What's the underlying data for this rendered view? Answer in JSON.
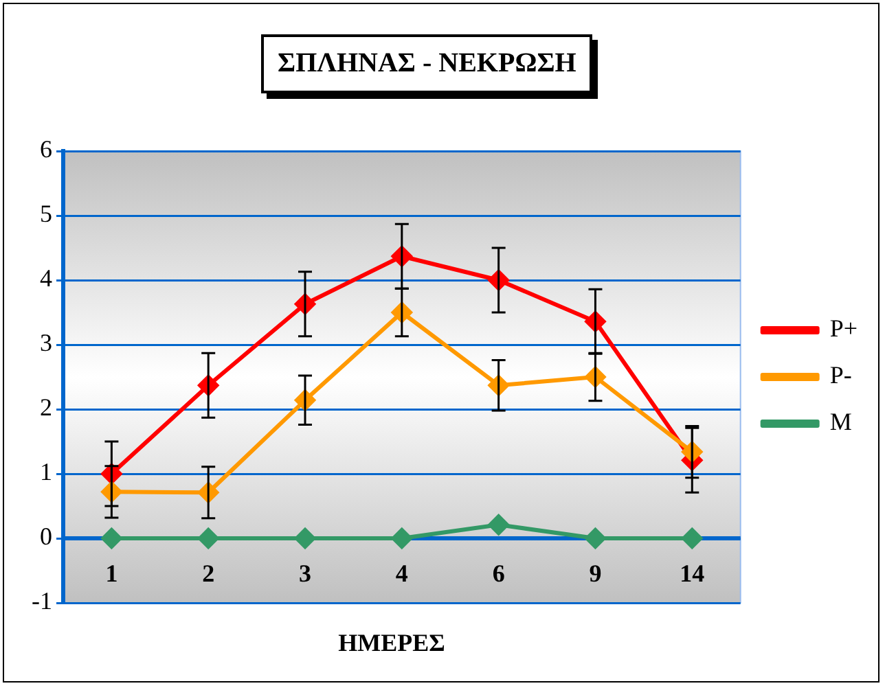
{
  "chart_data": {
    "type": "line",
    "title": "ΣΠΛΗΝΑΣ - ΝΕΚΡΩΣΗ",
    "xlabel": "ΗΜΕΡΕΣ",
    "categories": [
      "1",
      "2",
      "3",
      "4",
      "6",
      "9",
      "14"
    ],
    "series": [
      {
        "name": "P+",
        "color": "#ff0000",
        "values": [
          1.0,
          2.37,
          3.63,
          4.37,
          4.0,
          3.36,
          1.21
        ],
        "errors": [
          0.5,
          0.5,
          0.5,
          0.5,
          0.5,
          0.5,
          0.5
        ]
      },
      {
        "name": "P-",
        "color": "#ff9900",
        "values": [
          0.72,
          0.71,
          2.14,
          3.5,
          2.37,
          2.5,
          1.34
        ],
        "errors": [
          0.4,
          0.4,
          0.38,
          0.37,
          0.39,
          0.37,
          0.4
        ]
      },
      {
        "name": "M",
        "color": "#339966",
        "values": [
          0,
          0,
          0,
          0,
          0.21,
          0,
          0
        ]
      }
    ],
    "ref_lines": [
      {
        "axis": "y",
        "value": 0,
        "color": "#0066cc"
      }
    ],
    "ylim": [
      -1,
      6
    ],
    "yticks": [
      -1,
      0,
      1,
      2,
      3,
      4,
      5,
      6
    ],
    "grid": "y",
    "legend": "right",
    "marker": "diamond",
    "line_style": "solid"
  }
}
